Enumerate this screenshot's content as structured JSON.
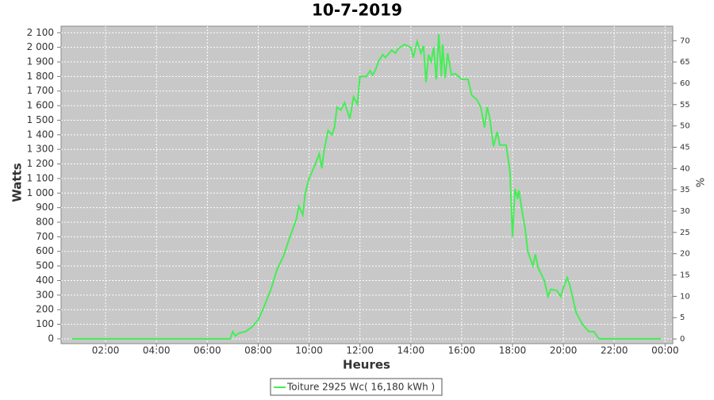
{
  "chart_data": {
    "type": "line",
    "title": "10-7-2019",
    "xlabel": "Heures",
    "ylabel": "Watts",
    "y2label": "%",
    "xlim": [
      0.25,
      24.3
    ],
    "xticks": [
      {
        "value": 2,
        "label": "02:00"
      },
      {
        "value": 4,
        "label": "04:00"
      },
      {
        "value": 6,
        "label": "06:00"
      },
      {
        "value": 8,
        "label": "08:00"
      },
      {
        "value": 10,
        "label": "10:00"
      },
      {
        "value": 12,
        "label": "12:00"
      },
      {
        "value": 14,
        "label": "14:00"
      },
      {
        "value": 16,
        "label": "16:00"
      },
      {
        "value": 18,
        "label": "18:00"
      },
      {
        "value": 20,
        "label": "20:00"
      },
      {
        "value": 22,
        "label": "22:00"
      },
      {
        "value": 24,
        "label": "00:00"
      }
    ],
    "ylim": [
      -33,
      2145
    ],
    "yticks": [
      0,
      100,
      200,
      300,
      400,
      500,
      600,
      700,
      800,
      900,
      {
        "value": 1000,
        "label": "1 000"
      },
      {
        "value": 1100,
        "label": "1 100"
      },
      {
        "value": 1200,
        "label": "1 200"
      },
      {
        "value": 1300,
        "label": "1 300"
      },
      {
        "value": 1400,
        "label": "1 400"
      },
      {
        "value": 1500,
        "label": "1 500"
      },
      {
        "value": 1600,
        "label": "1 600"
      },
      {
        "value": 1700,
        "label": "1 700"
      },
      {
        "value": 1800,
        "label": "1 800"
      },
      {
        "value": 1900,
        "label": "1 900"
      },
      {
        "value": 2000,
        "label": "2 000"
      },
      {
        "value": 2100,
        "label": "2 100"
      }
    ],
    "y2lim": [
      -1.1,
      73.4
    ],
    "y2ticks": [
      0,
      5,
      10,
      15,
      20,
      25,
      30,
      35,
      40,
      45,
      50,
      55,
      60,
      65,
      70
    ],
    "grid": true,
    "legend": "bottom",
    "x": [
      0.67,
      2,
      4,
      6,
      6.5,
      6.9,
      7.0,
      7.1,
      7.25,
      7.5,
      7.75,
      8.0,
      8.25,
      8.5,
      8.75,
      9.0,
      9.25,
      9.5,
      9.6,
      9.75,
      9.85,
      10.0,
      10.25,
      10.4,
      10.5,
      10.6,
      10.75,
      10.9,
      11.0,
      11.1,
      11.25,
      11.4,
      11.6,
      11.75,
      11.9,
      12.0,
      12.25,
      12.4,
      12.5,
      12.6,
      12.75,
      12.9,
      13.0,
      13.25,
      13.4,
      13.5,
      13.75,
      14.0,
      14.1,
      14.25,
      14.4,
      14.5,
      14.6,
      14.7,
      14.8,
      14.9,
      15.0,
      15.1,
      15.2,
      15.25,
      15.35,
      15.45,
      15.6,
      15.75,
      16.0,
      16.25,
      16.4,
      16.6,
      16.75,
      16.9,
      17.0,
      17.1,
      17.25,
      17.4,
      17.5,
      17.75,
      17.9,
      18.0,
      18.1,
      18.2,
      18.25,
      18.4,
      18.5,
      18.6,
      18.8,
      18.9,
      19.0,
      19.25,
      19.4,
      19.5,
      19.75,
      19.9,
      20.0,
      20.15,
      20.25,
      20.5,
      20.75,
      21.0,
      21.2,
      21.4,
      22,
      23,
      23.85
    ],
    "series": [
      {
        "name": "Toiture 2925 Wc( 16,180 kWh )",
        "color": "#44ee55",
        "values": [
          0,
          0,
          0,
          0,
          0,
          0,
          50,
          20,
          40,
          50,
          80,
          130,
          230,
          340,
          480,
          570,
          700,
          820,
          910,
          850,
          1000,
          1100,
          1200,
          1270,
          1170,
          1300,
          1430,
          1400,
          1450,
          1590,
          1570,
          1620,
          1510,
          1660,
          1610,
          1800,
          1800,
          1840,
          1810,
          1840,
          1910,
          1950,
          1930,
          1980,
          1960,
          1990,
          2020,
          2000,
          1930,
          2040,
          1960,
          2010,
          1760,
          1950,
          1900,
          2000,
          1780,
          2090,
          1800,
          2020,
          1790,
          1960,
          1810,
          1820,
          1780,
          1780,
          1670,
          1640,
          1590,
          1450,
          1590,
          1520,
          1320,
          1420,
          1330,
          1330,
          1150,
          700,
          1030,
          960,
          1020,
          850,
          750,
          600,
          500,
          580,
          490,
          400,
          290,
          340,
          330,
          290,
          350,
          420,
          370,
          180,
          100,
          50,
          50,
          0,
          0,
          0,
          0
        ]
      }
    ]
  }
}
